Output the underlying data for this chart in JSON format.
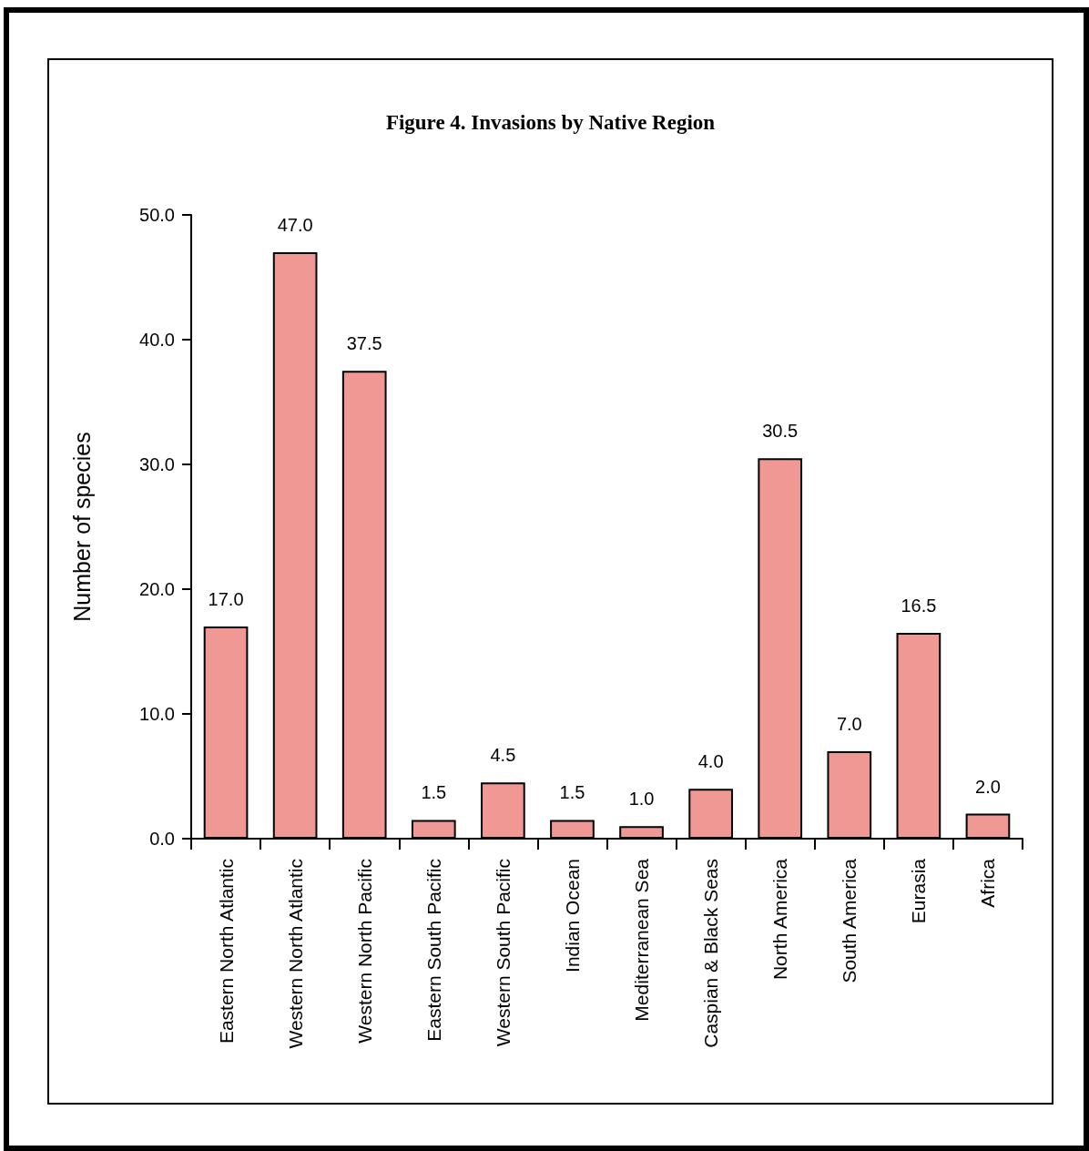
{
  "chart_data": {
    "type": "bar",
    "title": "Figure 4. Invasions by Native Region",
    "ylabel": "Number of species",
    "categories": [
      "Eastern North Atlantic",
      "Western North Atlantic",
      "Western North Pacific",
      "Eastern South Pacific",
      "Western South Pacific",
      "Indian Ocean",
      "Mediterranean Sea",
      "Caspian & Black Seas",
      "North America",
      "South America",
      "Eurasia",
      "Africa"
    ],
    "values": [
      17.0,
      47.0,
      37.5,
      1.5,
      4.5,
      1.5,
      1.0,
      4.0,
      30.5,
      7.0,
      16.5,
      2.0
    ],
    "value_labels": [
      "17.0",
      "47.0",
      "37.5",
      "1.5",
      "4.5",
      "1.5",
      "1.0",
      "4.0",
      "30.5",
      "7.0",
      "16.5",
      "2.0"
    ],
    "color": "#f09893",
    "ylim": [
      0,
      50
    ],
    "yticks": [
      {
        "value": 0,
        "label": "0.0"
      },
      {
        "value": 10,
        "label": "10.0"
      },
      {
        "value": 20,
        "label": "20.0"
      },
      {
        "value": 30,
        "label": "30.0"
      },
      {
        "value": 40,
        "label": "40.0"
      },
      {
        "value": 50,
        "label": "50.0"
      }
    ],
    "grid": false
  }
}
